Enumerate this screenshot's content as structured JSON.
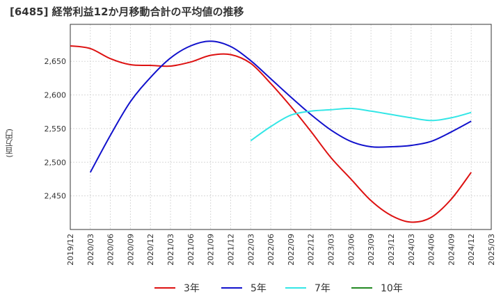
{
  "chart_data": {
    "type": "line",
    "title": "[6485]  経常利益12か月移動合計の平均値の推移",
    "ylabel": "(百万円)",
    "xlabel": "",
    "ylim": [
      2400,
      2705
    ],
    "yticks": [
      2450,
      2500,
      2550,
      2600,
      2650
    ],
    "ytick_labels": [
      "2,450",
      "2,500",
      "2,550",
      "2,600",
      "2,650"
    ],
    "x_ticks": [
      "2019/12",
      "2020/03",
      "2020/06",
      "2020/09",
      "2020/12",
      "2021/03",
      "2021/06",
      "2021/09",
      "2021/12",
      "2022/03",
      "2022/06",
      "2022/09",
      "2022/12",
      "2023/03",
      "2023/06",
      "2023/09",
      "2023/12",
      "2024/03",
      "2024/06",
      "2024/09",
      "2024/12",
      "2025/03"
    ],
    "grid": true,
    "legend_position": "bottom",
    "series": [
      {
        "name": "3年",
        "color": "#dd1111",
        "x": [
          "2019/12",
          "2020/03",
          "2020/06",
          "2020/09",
          "2020/12",
          "2021/03",
          "2021/06",
          "2021/09",
          "2021/12",
          "2022/03",
          "2022/06",
          "2022/09",
          "2022/12",
          "2023/03",
          "2023/06",
          "2023/09",
          "2023/12",
          "2024/03",
          "2024/06",
          "2024/09",
          "2024/12"
        ],
        "values": [
          2673,
          2669,
          2654,
          2645,
          2644,
          2643,
          2649,
          2659,
          2660,
          2647,
          2617,
          2583,
          2546,
          2507,
          2475,
          2443,
          2421,
          2411,
          2418,
          2445,
          2485
        ]
      },
      {
        "name": "5年",
        "color": "#1111cc",
        "x": [
          "2020/03",
          "2020/06",
          "2020/09",
          "2020/12",
          "2021/03",
          "2021/06",
          "2021/09",
          "2021/12",
          "2022/03",
          "2022/06",
          "2022/09",
          "2022/12",
          "2023/03",
          "2023/06",
          "2023/09",
          "2023/12",
          "2024/03",
          "2024/06",
          "2024/09",
          "2024/12"
        ],
        "values": [
          2485,
          2540,
          2590,
          2626,
          2655,
          2673,
          2680,
          2672,
          2651,
          2624,
          2597,
          2571,
          2548,
          2531,
          2523,
          2523,
          2525,
          2531,
          2545,
          2561
        ]
      },
      {
        "name": "7年",
        "color": "#33e6e6",
        "x": [
          "2022/03",
          "2022/06",
          "2022/09",
          "2022/12",
          "2023/03",
          "2023/06",
          "2023/09",
          "2023/12",
          "2024/03",
          "2024/06",
          "2024/09",
          "2024/12"
        ],
        "values": [
          2532,
          2553,
          2570,
          2576,
          2578,
          2580,
          2576,
          2571,
          2566,
          2562,
          2566,
          2574
        ]
      },
      {
        "name": "10年",
        "color": "#228822",
        "x": [],
        "values": []
      }
    ]
  }
}
